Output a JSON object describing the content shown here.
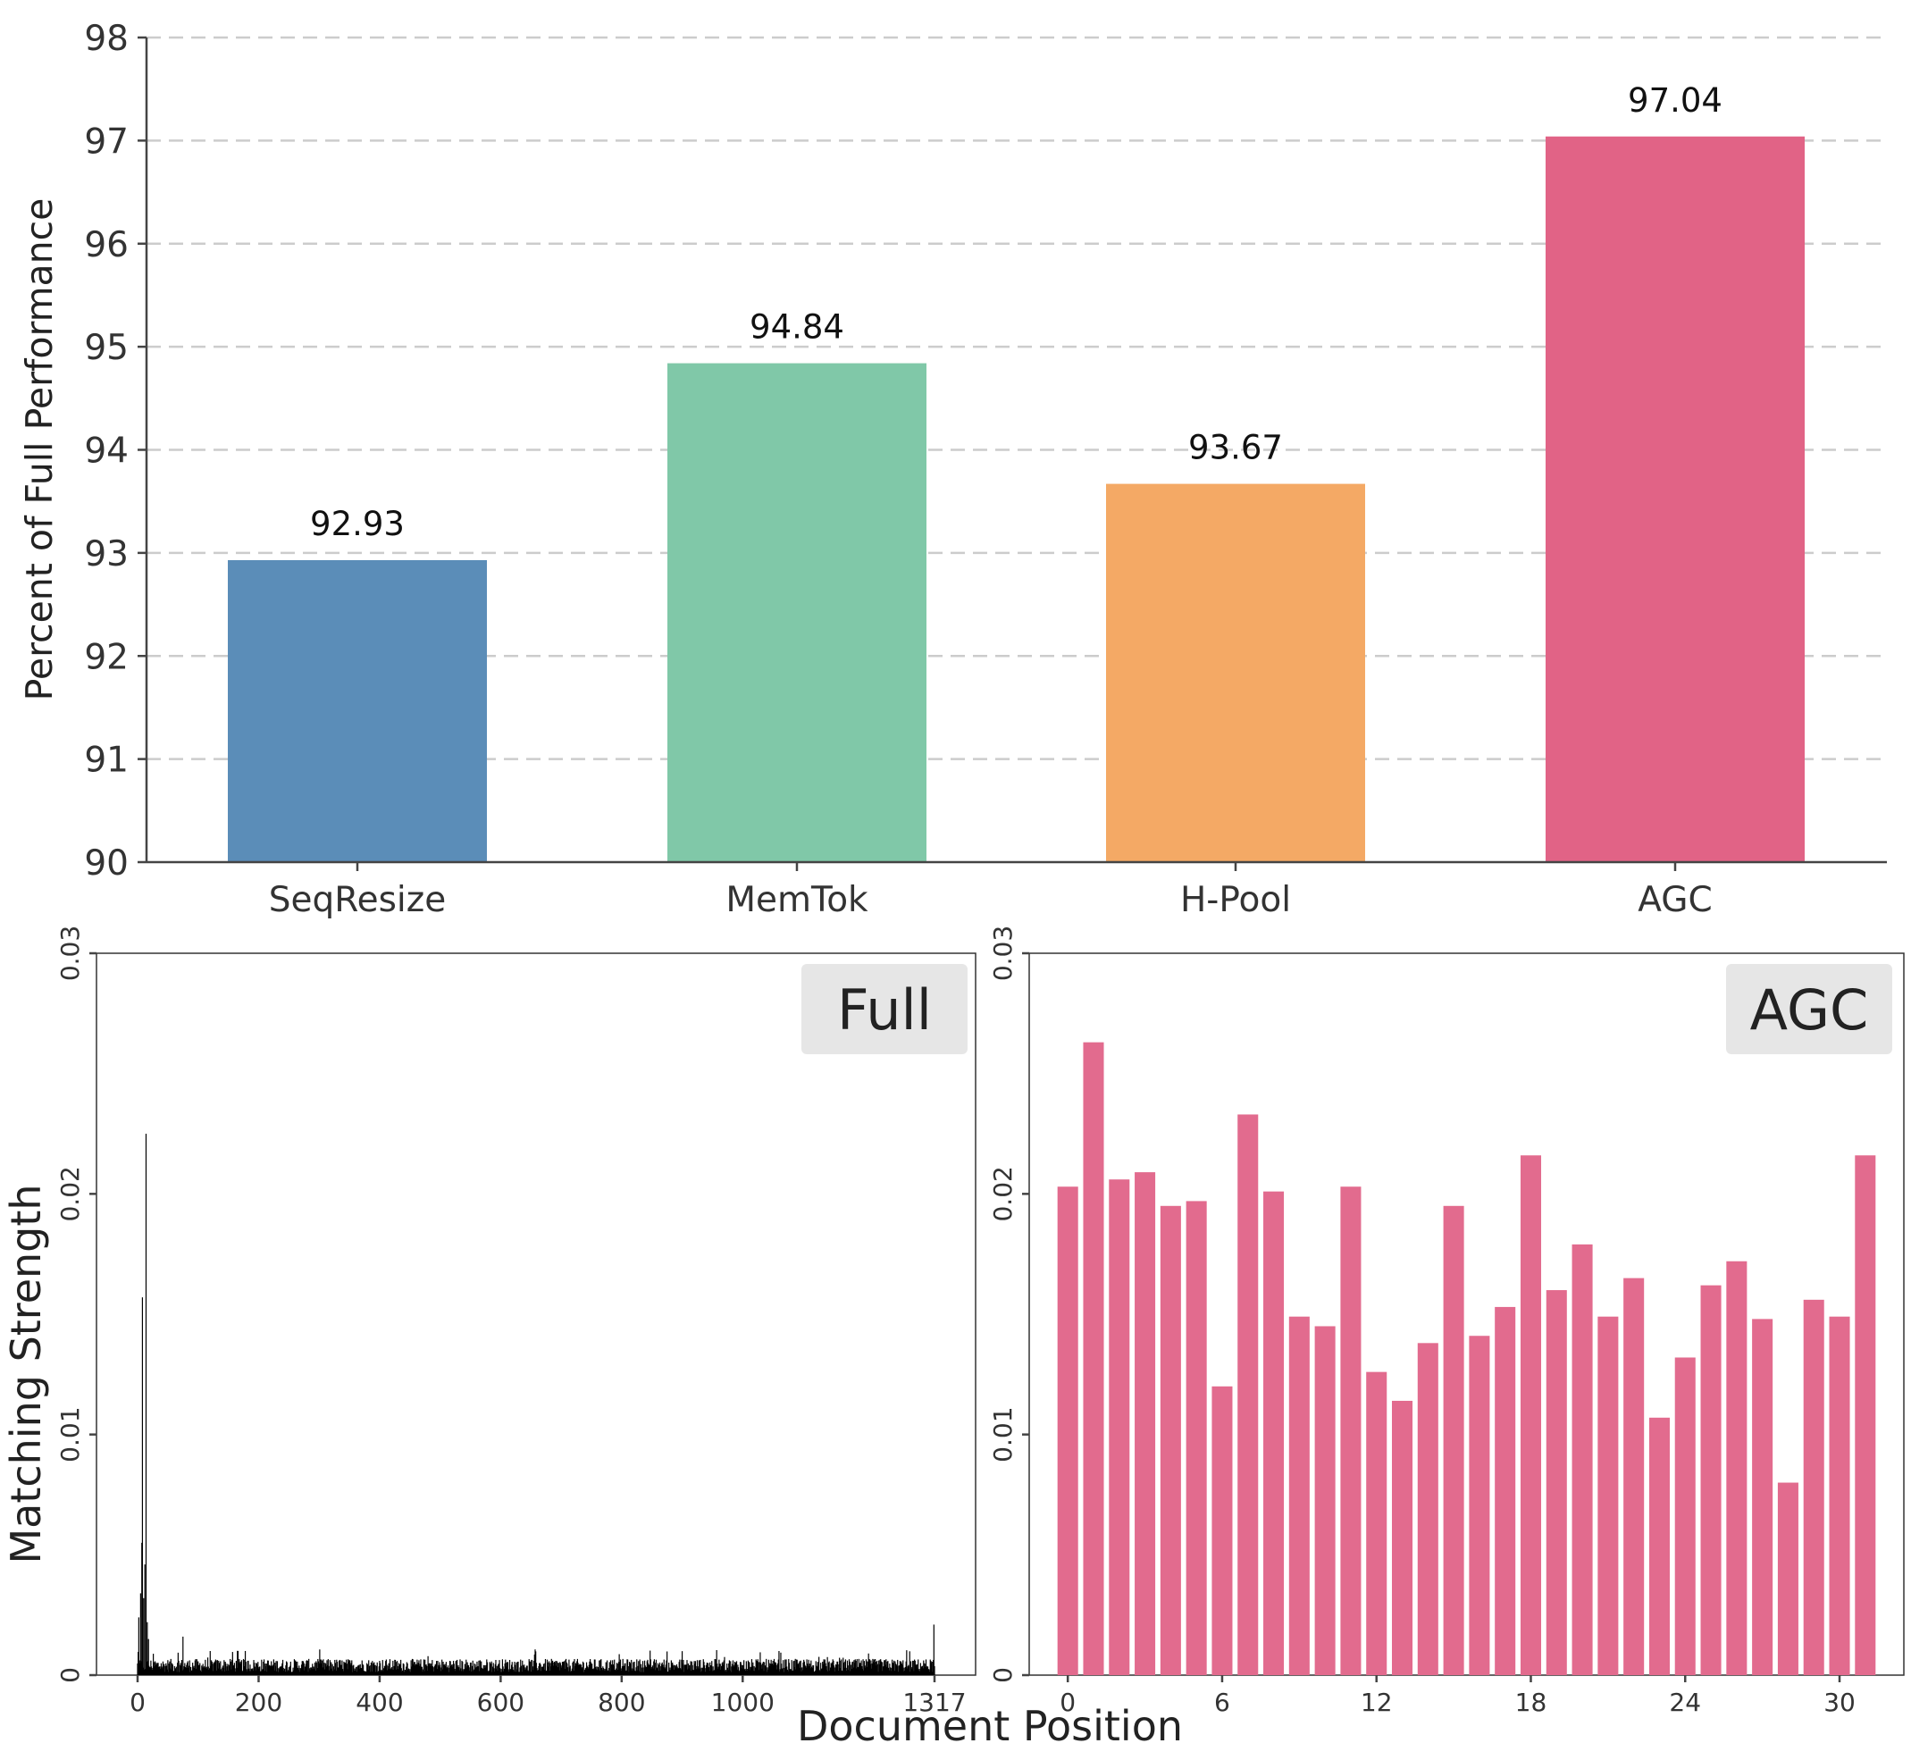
{
  "chart_data": [
    {
      "type": "bar",
      "categories": [
        "SeqResize",
        "MemTok",
        "H-Pool",
        "AGC"
      ],
      "values": [
        92.93,
        94.84,
        93.67,
        97.04
      ],
      "value_labels": [
        "92.93",
        "94.84",
        "93.67",
        "97.04"
      ],
      "colors": [
        "#5b8db8",
        "#80c8a8",
        "#f4a965",
        "#e16386"
      ],
      "ylabel": "Percent of Full Performance",
      "xlabel": "",
      "ylim": [
        90,
        98
      ],
      "yticks": [
        90,
        91,
        92,
        93,
        94,
        95,
        96,
        97,
        98
      ],
      "yticklabels": [
        "90",
        "91",
        "92",
        "93",
        "94",
        "95",
        "96",
        "97",
        "98"
      ],
      "grid": "y, dashed"
    },
    {
      "type": "bar",
      "panel_label": "Full",
      "ylabel": "Matching Strength",
      "xlabel": "Document Position",
      "xlim": [
        0,
        1317
      ],
      "ylim": [
        0,
        0.03
      ],
      "xticks": [
        0,
        200,
        400,
        600,
        800,
        1000,
        1317
      ],
      "xticklabels": [
        "0",
        "200",
        "400",
        "600",
        "800",
        "1000",
        "1317"
      ],
      "yticks": [
        0,
        0.01,
        0.02,
        0.03
      ],
      "yticklabels": [
        "0",
        "0.01",
        "0.02",
        "0.03"
      ],
      "color": "#000000",
      "n_positions": 1318,
      "peaks": [
        {
          "x": 2,
          "y": 0.0024
        },
        {
          "x": 5,
          "y": 0.0034
        },
        {
          "x": 7,
          "y": 0.0055
        },
        {
          "x": 8,
          "y": 0.0157
        },
        {
          "x": 10,
          "y": 0.0032
        },
        {
          "x": 12,
          "y": 0.0046
        },
        {
          "x": 14,
          "y": 0.0225
        },
        {
          "x": 16,
          "y": 0.0022
        },
        {
          "x": 18,
          "y": 0.0015
        },
        {
          "x": 75,
          "y": 0.0016
        },
        {
          "x": 1316,
          "y": 0.0021
        }
      ],
      "baseline_typical": 0.0005,
      "baseline_max": 0.0009
    },
    {
      "type": "bar",
      "panel_label": "AGC",
      "xlabel": "Document Position",
      "xlim": [
        -1.5,
        32.5
      ],
      "ylim": [
        0,
        0.03
      ],
      "xticks": [
        0,
        6,
        12,
        18,
        24,
        30
      ],
      "xticklabels": [
        "0",
        "6",
        "12",
        "18",
        "24",
        "30"
      ],
      "yticks": [
        0,
        0.01,
        0.02,
        0.03
      ],
      "yticklabels": [
        "0",
        "0.01",
        "0.02",
        "0.03"
      ],
      "color": "#e26b8e",
      "x": [
        0,
        1,
        2,
        3,
        4,
        5,
        6,
        7,
        8,
        9,
        10,
        11,
        12,
        13,
        14,
        15,
        16,
        17,
        18,
        19,
        20,
        21,
        22,
        23,
        24,
        25,
        26,
        27,
        28,
        29,
        30,
        31
      ],
      "values": [
        0.0203,
        0.0263,
        0.0206,
        0.0209,
        0.0195,
        0.0197,
        0.012,
        0.0233,
        0.0201,
        0.0149,
        0.0145,
        0.0203,
        0.0126,
        0.0114,
        0.0138,
        0.0195,
        0.0141,
        0.0153,
        0.0216,
        0.016,
        0.0179,
        0.0149,
        0.0165,
        0.0107,
        0.0132,
        0.0162,
        0.0172,
        0.0148,
        0.008,
        0.0156,
        0.0149,
        0.0216
      ]
    }
  ]
}
